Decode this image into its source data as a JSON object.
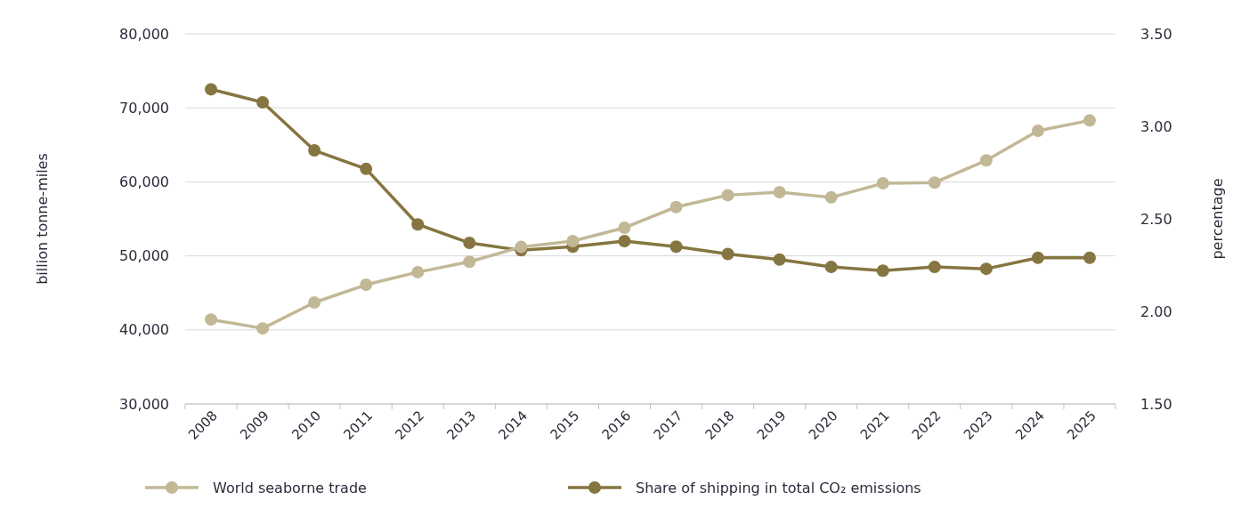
{
  "chart_data": {
    "type": "line",
    "ylabel": "billion tonne-miles",
    "y2label": "percentage",
    "categories": [
      "2008",
      "2009",
      "2010",
      "2011",
      "2012",
      "2013",
      "2014",
      "2015",
      "2016",
      "2017",
      "2018",
      "2019",
      "2020",
      "2021",
      "2022",
      "2023",
      "2024",
      "2025"
    ],
    "series": [
      {
        "name": "World seaborne trade",
        "color": "#c2b896",
        "values": [
          41400,
          40200,
          43700,
          46100,
          47800,
          49200,
          51200,
          52000,
          53800,
          56600,
          58200,
          58600,
          57900,
          59800,
          59900,
          62900,
          66900,
          68300
        ]
      },
      {
        "name": "Share of shipping in total CO₂ emissions",
        "color": "#857540",
        "axis": "y2",
        "values": [
          3.2,
          3.13,
          2.87,
          2.77,
          2.47,
          2.37,
          2.33,
          2.35,
          2.38,
          2.35,
          2.31,
          2.28,
          2.24,
          2.22,
          2.24,
          2.23,
          2.29,
          2.29
        ]
      }
    ],
    "ylim": [
      30000,
      80000
    ],
    "yticks": [
      {
        "value": 30000,
        "label": "30,000"
      },
      {
        "value": 40000,
        "label": "40,000"
      },
      {
        "value": 50000,
        "label": "50,000"
      },
      {
        "value": 60000,
        "label": "60,000"
      },
      {
        "value": 70000,
        "label": "70,000"
      },
      {
        "value": 80000,
        "label": "80,000"
      }
    ],
    "y2lim": [
      1.5,
      3.5
    ],
    "y2ticks": [
      {
        "value": 1.5,
        "label": "1.50"
      },
      {
        "value": 2,
        "label": "2.00"
      },
      {
        "value": 2.5,
        "label": "2.50"
      },
      {
        "value": 3,
        "label": "3.00"
      },
      {
        "value": 3.5,
        "label": "3.50"
      }
    ],
    "grid": "y",
    "legend": "bottom",
    "marker": "circle",
    "line_style": "solid"
  }
}
